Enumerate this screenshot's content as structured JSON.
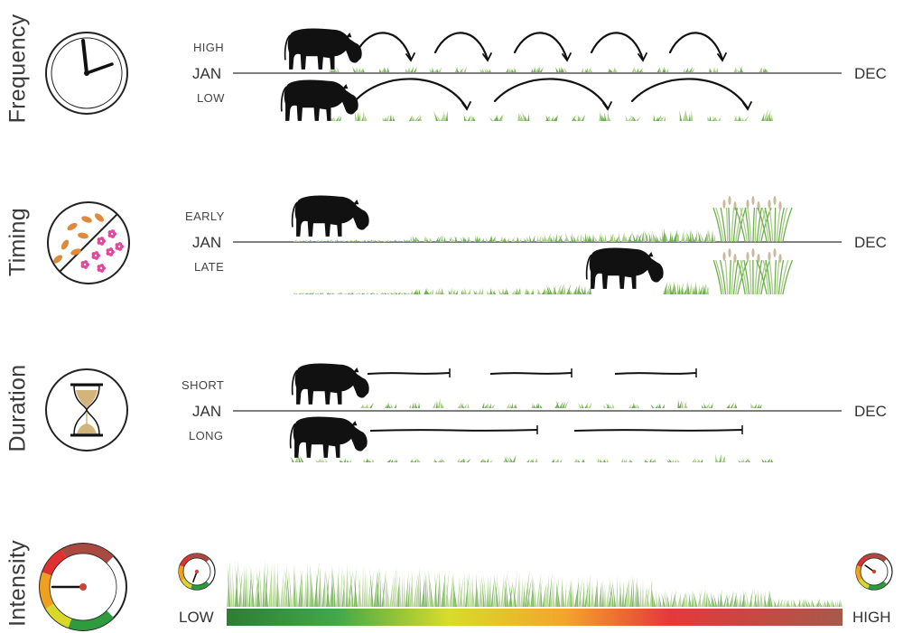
{
  "sections": [
    {
      "name": "Frequency",
      "upper": "HIGH",
      "lower": "LOW",
      "start": "JAN",
      "end": "DEC",
      "icon": "clock-icon"
    },
    {
      "name": "Timing",
      "upper": "EARLY",
      "lower": "LATE",
      "start": "JAN",
      "end": "DEC",
      "icon": "season-icon"
    },
    {
      "name": "Duration",
      "upper": "SHORT",
      "lower": "LONG",
      "start": "JAN",
      "end": "DEC",
      "icon": "hourglass-icon"
    },
    {
      "name": "Intensity",
      "low": "LOW",
      "high": "HIGH",
      "icon": "gauge-icon"
    }
  ],
  "colors": {
    "cow": "#111111",
    "grass_light": "#a9cf86",
    "grass_dark": "#6fae4f",
    "petal": "#e0489c",
    "leaf": "#e0893a",
    "sand": "#d3b47a",
    "gradient": [
      "#2e7d32",
      "#4caf50",
      "#d8dc2a",
      "#f3a52a",
      "#e6383a",
      "#a65a4a"
    ]
  }
}
